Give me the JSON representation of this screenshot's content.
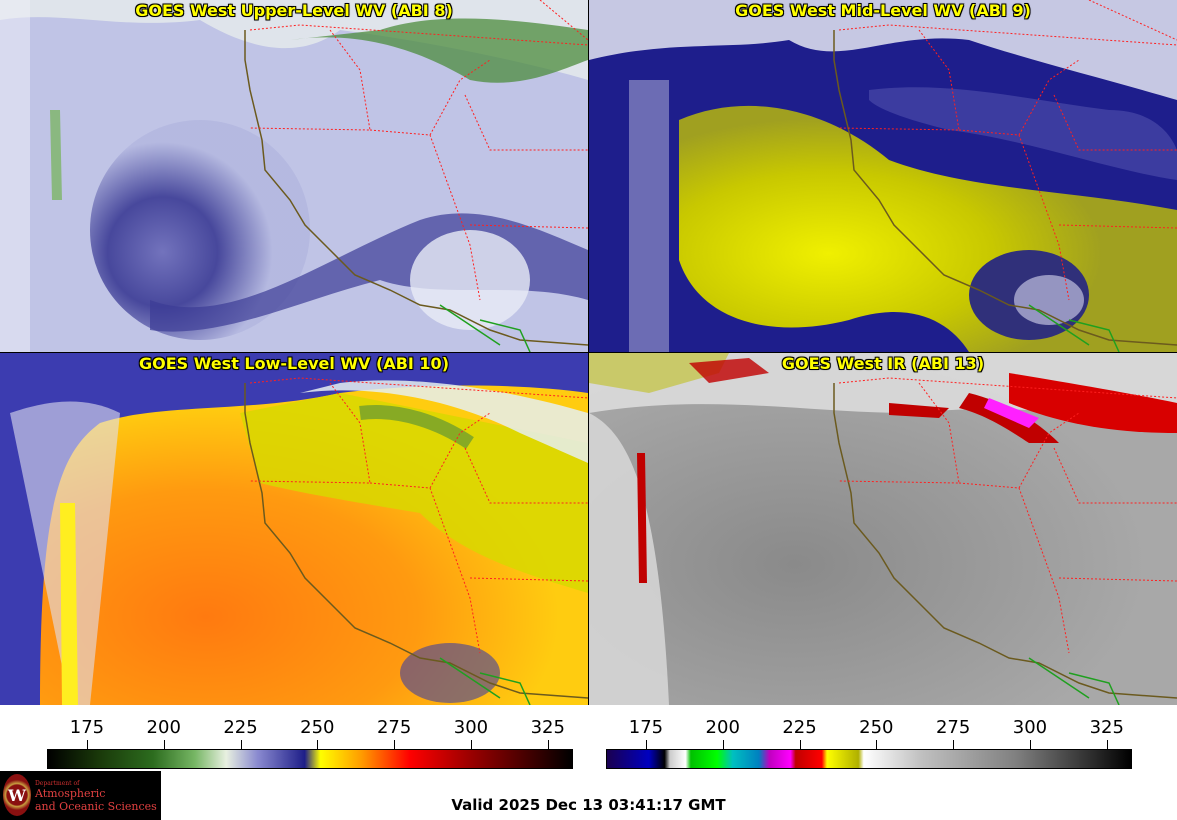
{
  "panels": [
    {
      "id": "p1",
      "title": "GOES West Upper-Level WV (ABI 8)",
      "palette": "wv-upper"
    },
    {
      "id": "p2",
      "title": "GOES West Mid-Level WV (ABI 9)",
      "palette": "wv-mid"
    },
    {
      "id": "p3",
      "title": "GOES West Low-Level WV (ABI 10)",
      "palette": "wv-low"
    },
    {
      "id": "p4",
      "title": "GOES West IR (ABI 13)",
      "palette": "ir"
    }
  ],
  "colorbars": [
    {
      "name": "water-vapor-scale",
      "ticks": [
        "175",
        "200",
        "225",
        "250",
        "275",
        "300",
        "325"
      ]
    },
    {
      "name": "infrared-scale",
      "ticks": [
        "175",
        "200",
        "225",
        "250",
        "275",
        "300",
        "325"
      ]
    }
  ],
  "logo": {
    "dept": "Department of",
    "line1": "Atmospheric",
    "line2": "and Oceanic Sciences",
    "seal": "W"
  },
  "valid_time": "Valid 2025 Dec 13 03:41:17 GMT",
  "colors": {
    "title": "#ffff00",
    "state_borders": "#ff2020",
    "coastline": "#6b5a1e",
    "mexico_border": "#1fa01f"
  }
}
